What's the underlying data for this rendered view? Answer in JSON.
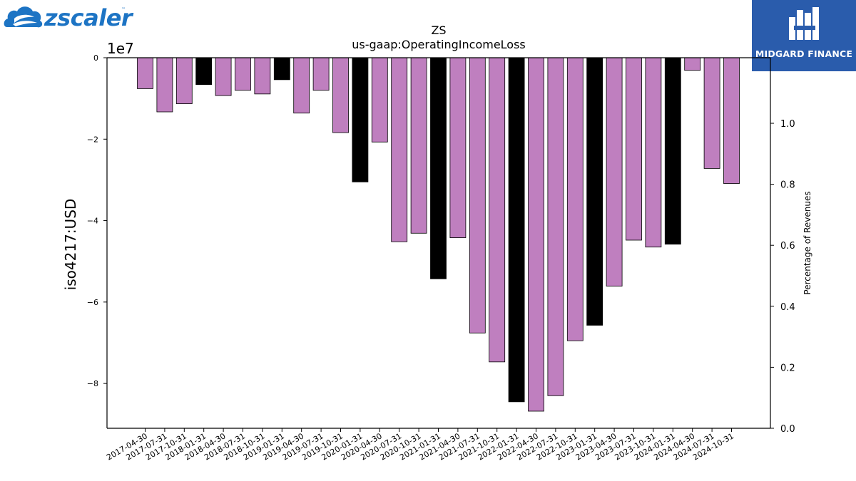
{
  "logos": {
    "left_text": "zscaler",
    "left_tm": "™",
    "right_text": "MIDGARD FINANCE"
  },
  "chart_data": {
    "type": "bar",
    "title": "ZS",
    "subtitle": "us-gaap:OperatingIncomeLoss",
    "ylabel": "iso4217:USD",
    "y2label": "Percentage of Revenues",
    "offset_label": "1e7",
    "ylim": [
      -91000000,
      0
    ],
    "y2lim": [
      0.0,
      1.215
    ],
    "yticks": [
      0,
      -20000000,
      -40000000,
      -60000000,
      -80000000
    ],
    "ytick_labels": [
      "0",
      "−2",
      "−4",
      "−6",
      "−8"
    ],
    "y2ticks": [
      0.0,
      0.2,
      0.4,
      0.6,
      0.8,
      1.0
    ],
    "y2tick_labels": [
      "0.0",
      "0.2",
      "0.4",
      "0.6",
      "0.8",
      "1.0"
    ],
    "colors": {
      "quarter": "#bf7fbf",
      "fiscal_year_end": "#000000"
    },
    "categories": [
      "2017-04-30",
      "2017-07-31",
      "2017-10-31",
      "2018-01-31",
      "2018-04-30",
      "2018-07-31",
      "2018-10-31",
      "2019-01-31",
      "2019-04-30",
      "2019-07-31",
      "2019-10-31",
      "2020-01-31",
      "2020-04-30",
      "2020-07-31",
      "2020-10-31",
      "2021-01-31",
      "2021-04-30",
      "2021-07-31",
      "2021-10-31",
      "2022-01-31",
      "2022-04-30",
      "2022-07-31",
      "2022-10-31",
      "2023-01-31",
      "2023-04-30",
      "2023-07-31",
      "2023-10-31",
      "2024-01-31",
      "2024-04-30",
      "2024-07-31",
      "2024-10-31"
    ],
    "values": [
      -7600000,
      -13300000,
      -11300000,
      -6600000,
      -9300000,
      -8000000,
      -8900000,
      -5400000,
      -13600000,
      -8000000,
      -18400000,
      -30500000,
      -20700000,
      -45200000,
      -43100000,
      -54300000,
      -44200000,
      -67600000,
      -74700000,
      -84500000,
      -86800000,
      -83000000,
      -69500000,
      -65700000,
      -56100000,
      -44800000,
      -46500000,
      -45800000,
      -3100000,
      -27200000,
      -30900000
    ],
    "highlight": [
      false,
      false,
      false,
      true,
      false,
      false,
      false,
      true,
      false,
      false,
      false,
      true,
      false,
      false,
      false,
      true,
      false,
      false,
      false,
      true,
      false,
      false,
      false,
      true,
      false,
      false,
      false,
      true,
      false,
      false,
      false
    ]
  }
}
